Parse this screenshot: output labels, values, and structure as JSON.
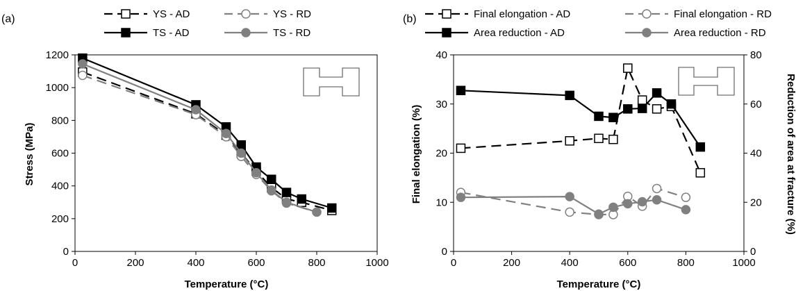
{
  "chart_data": [
    {
      "type": "line",
      "panel_label": "(a)",
      "xlabel": "Temperature (°C)",
      "ylabel": "Stress (MPa)",
      "xlim": [
        0,
        1000
      ],
      "ylim": [
        0,
        1200
      ],
      "xticks": [
        0,
        200,
        400,
        600,
        800,
        1000
      ],
      "yticks": [
        0,
        200,
        400,
        600,
        800,
        1000,
        1200
      ],
      "grid": false,
      "legend_position": "top",
      "series": [
        {
          "name": "YS - AD",
          "color": "#000000",
          "dash": true,
          "marker": "square",
          "filled": false,
          "x": [
            25,
            400,
            500,
            550,
            600,
            650,
            700,
            750,
            850
          ],
          "y": [
            1095,
            840,
            710,
            600,
            490,
            390,
            320,
            300,
            250
          ]
        },
        {
          "name": "YS - RD",
          "color": "#808080",
          "dash": true,
          "marker": "circle",
          "filled": false,
          "x": [
            25,
            400,
            500,
            550,
            600,
            650,
            700,
            800
          ],
          "y": [
            1075,
            835,
            700,
            580,
            470,
            370,
            295,
            240
          ]
        },
        {
          "name": "TS - AD",
          "color": "#000000",
          "dash": false,
          "marker": "square",
          "filled": true,
          "x": [
            25,
            400,
            500,
            550,
            600,
            650,
            700,
            750,
            850
          ],
          "y": [
            1180,
            895,
            760,
            650,
            515,
            440,
            360,
            320,
            265
          ]
        },
        {
          "name": "TS - RD",
          "color": "#808080",
          "dash": false,
          "marker": "circle",
          "filled": true,
          "x": [
            25,
            400,
            500,
            550,
            600,
            650,
            700,
            800
          ],
          "y": [
            1145,
            865,
            720,
            600,
            480,
            375,
            300,
            240
          ]
        }
      ]
    },
    {
      "type": "line",
      "panel_label": "(b)",
      "xlabel": "Temperature (°C)",
      "ylabel": "Final elongation (%)",
      "y2label": "Reduction of area at fracture (%)",
      "xlim": [
        0,
        1000
      ],
      "ylim": [
        0,
        40
      ],
      "y2lim": [
        0,
        80
      ],
      "xticks": [
        0,
        200,
        400,
        600,
        800,
        1000
      ],
      "yticks": [
        0,
        10,
        20,
        30,
        40
      ],
      "y2ticks": [
        0,
        20,
        40,
        60,
        80
      ],
      "grid": false,
      "legend_position": "top",
      "series": [
        {
          "name": "Final elongation - AD",
          "axis": "left",
          "color": "#000000",
          "dash": true,
          "marker": "square",
          "filled": false,
          "x": [
            25,
            400,
            500,
            550,
            600,
            650,
            700,
            750,
            850
          ],
          "y": [
            21,
            22.5,
            23,
            22.8,
            37.3,
            30.8,
            29,
            29.5,
            16
          ]
        },
        {
          "name": "Final elongation - RD",
          "axis": "left",
          "color": "#808080",
          "dash": true,
          "marker": "circle",
          "filled": false,
          "x": [
            25,
            400,
            500,
            550,
            600,
            650,
            700,
            800
          ],
          "y": [
            12,
            8,
            7.5,
            7.5,
            11.2,
            9.2,
            12.8,
            11
          ]
        },
        {
          "name": "Area reduction - AD",
          "axis": "right",
          "color": "#000000",
          "dash": false,
          "marker": "square",
          "filled": true,
          "x": [
            25,
            400,
            500,
            550,
            600,
            650,
            700,
            750,
            850
          ],
          "y": [
            65.5,
            63.5,
            55,
            54.5,
            58,
            58.2,
            64.5,
            60,
            42.5
          ]
        },
        {
          "name": "Area reduction - RD",
          "axis": "right",
          "color": "#808080",
          "dash": false,
          "marker": "circle",
          "filled": true,
          "x": [
            25,
            400,
            500,
            550,
            600,
            650,
            700,
            800
          ],
          "y": [
            22,
            22.3,
            15.2,
            18,
            19.4,
            20.2,
            21,
            17
          ]
        }
      ]
    }
  ]
}
